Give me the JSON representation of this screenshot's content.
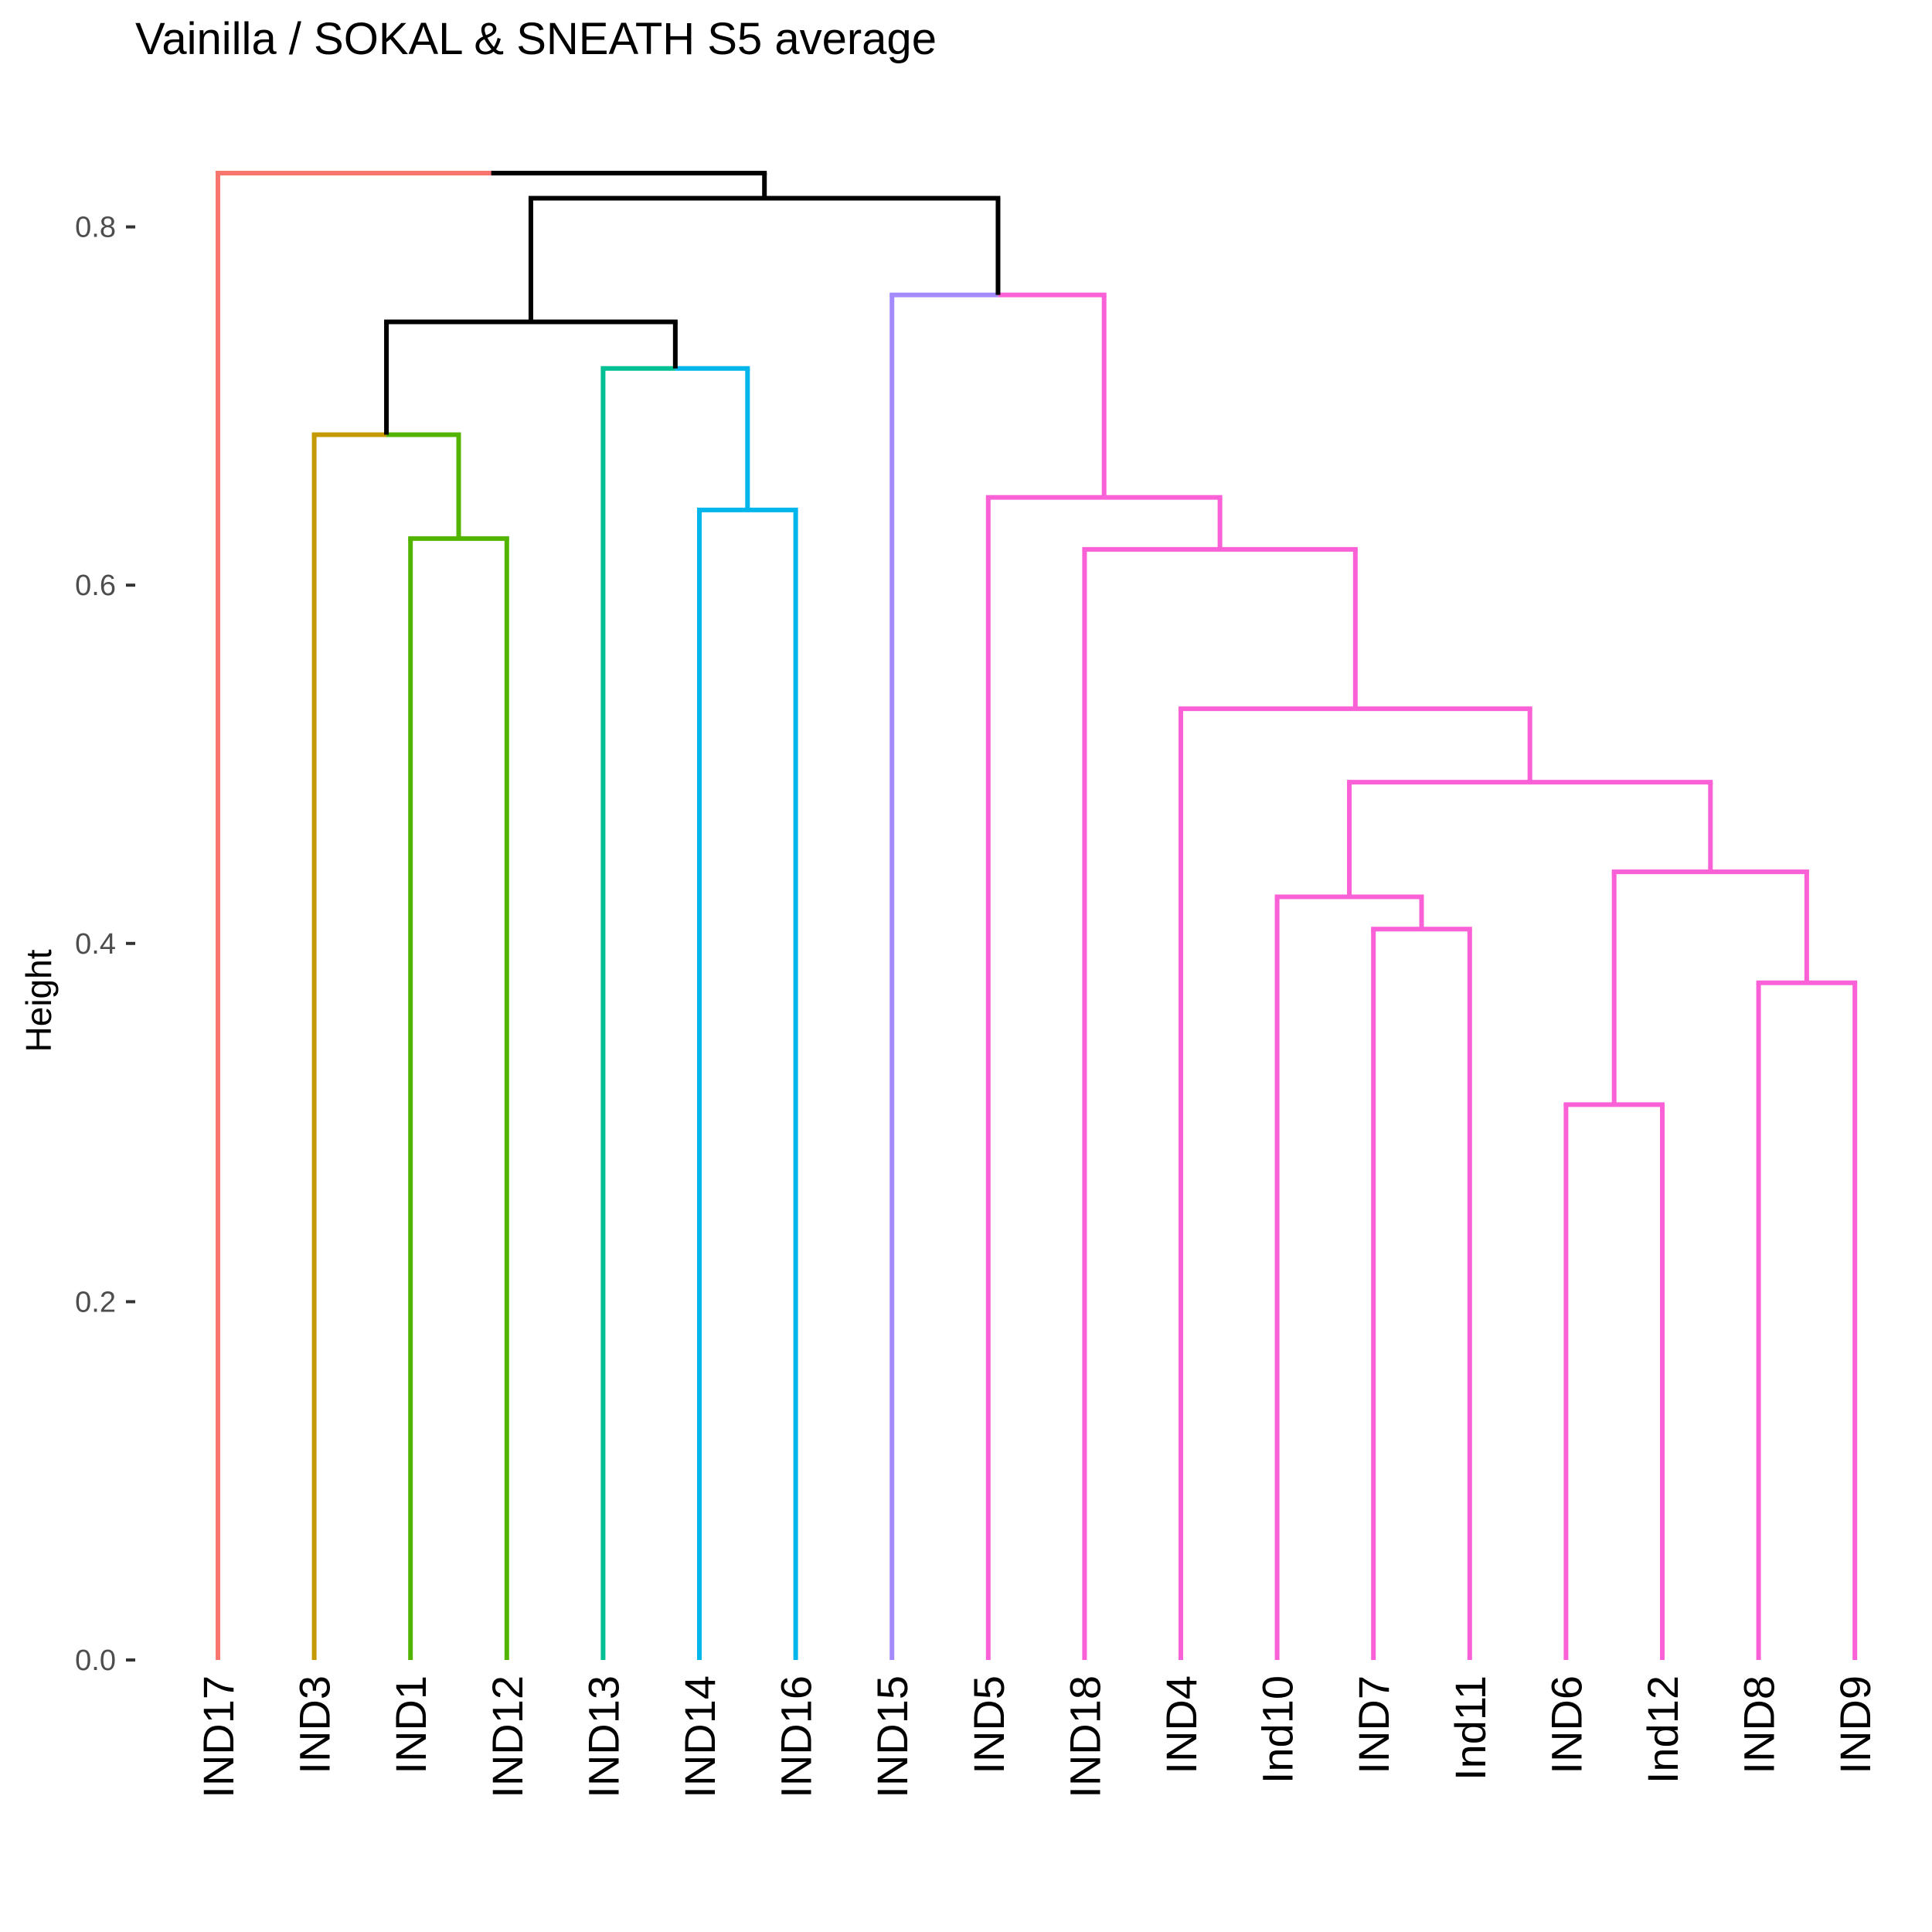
{
  "chart_data": {
    "type": "dendrogram",
    "title": "Vainilla / SOKAL & SNEATH S5 average",
    "ylabel": "Height",
    "xlabel": "",
    "ylim": [
      0,
      0.83
    ],
    "yticks": [
      0.0,
      0.2,
      0.4,
      0.6,
      0.8
    ],
    "ytick_labels": [
      "0.0",
      "0.2",
      "0.4",
      "0.6",
      "0.8"
    ],
    "grid": false,
    "leaves": [
      "IND17",
      "IND3",
      "IND1",
      "IND12",
      "IND13",
      "IND14",
      "IND16",
      "IND15",
      "IND5",
      "IND18",
      "IND4",
      "Ind10",
      "IND7",
      "Ind11",
      "IND6",
      "Ind12",
      "IND8",
      "IND9"
    ],
    "leaf_colors": [
      "#F8766D",
      "#C49A00",
      "#53B400",
      "#53B400",
      "#00C094",
      "#00B6EB",
      "#00B6EB",
      "#A58AFF",
      "#FB61D7",
      "#FB61D7",
      "#FB61D7",
      "#FB61D7",
      "#FB61D7",
      "#FB61D7",
      "#FB61D7",
      "#FB61D7",
      "#FB61D7",
      "#FB61D7"
    ],
    "merges": [
      {
        "left": "IND6",
        "right": "Ind12",
        "height": 0.31,
        "color": "#FB61D7"
      },
      {
        "left": "IND8",
        "right": "IND9",
        "height": 0.378,
        "color": "#FB61D7"
      },
      {
        "left": "IND7",
        "right": "Ind11",
        "height": 0.408,
        "color": "#FB61D7"
      },
      {
        "left": "Ind10",
        "right": "m3",
        "height": 0.426,
        "color": "#FB61D7"
      },
      {
        "left": "m1",
        "right": "m2",
        "height": 0.44,
        "color": "#FB61D7"
      },
      {
        "left": "m4",
        "right": "m5",
        "height": 0.49,
        "color": "#FB61D7"
      },
      {
        "left": "IND4",
        "right": "m6",
        "height": 0.531,
        "color": "#FB61D7"
      },
      {
        "left": "IND18",
        "right": "m7",
        "height": 0.62,
        "color": "#FB61D7"
      },
      {
        "left": "IND5",
        "right": "m8",
        "height": 0.649,
        "color": "#FB61D7"
      },
      {
        "left": "IND15",
        "right": "m9",
        "height": 0.762,
        "color": "#FB61D7",
        "left_color": "#A58AFF"
      },
      {
        "left": "IND1",
        "right": "IND12",
        "height": 0.626,
        "color": "#53B400"
      },
      {
        "left": "IND3",
        "right": "m11",
        "height": 0.684,
        "color": "#53B400",
        "left_color": "#C49A00"
      },
      {
        "left": "IND14",
        "right": "IND16",
        "height": 0.642,
        "color": "#00B6EB"
      },
      {
        "left": "IND13",
        "right": "m13",
        "height": 0.721,
        "color": "#00B6EB",
        "left_color": "#00C094"
      },
      {
        "left": "m12",
        "right": "m14",
        "height": 0.747,
        "color": "#000000"
      },
      {
        "left": "m15",
        "right": "m10",
        "height": 0.816,
        "color": "#000000"
      },
      {
        "left": "IND17",
        "right": "m16",
        "height": 0.83,
        "color": "#000000",
        "left_color": "#F8766D"
      }
    ]
  }
}
